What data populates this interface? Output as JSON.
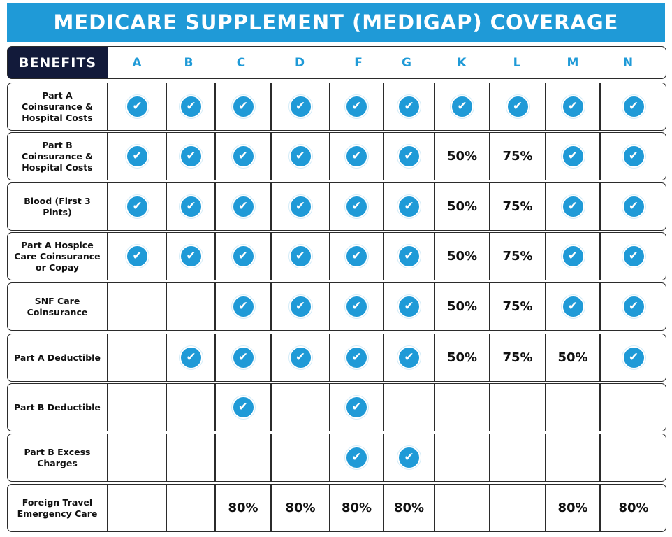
{
  "title": "MEDICARE SUPPLEMENT (MEDIGAP) COVERAGE",
  "benefits_header": "BENEFITS",
  "plans": [
    "A",
    "B",
    "C",
    "D",
    "F",
    "G",
    "K",
    "L",
    "M",
    "N"
  ],
  "icons": {
    "included": "check-circle-icon"
  },
  "colors": {
    "accent": "#1f9ad7",
    "header_dark": "#121a3a",
    "border": "#2b2b2b"
  },
  "rows": [
    {
      "benefit": "Part A Coinsurance & Hospital Costs",
      "cells": [
        "check",
        "check",
        "check",
        "check",
        "check",
        "check",
        "check",
        "check",
        "check",
        "check"
      ]
    },
    {
      "benefit": "Part B Coinsurance & Hospital Costs",
      "cells": [
        "check",
        "check",
        "check",
        "check",
        "check",
        "check",
        "50%",
        "75%",
        "check",
        "check"
      ]
    },
    {
      "benefit": "Blood (First 3 Pints)",
      "cells": [
        "check",
        "check",
        "check",
        "check",
        "check",
        "check",
        "50%",
        "75%",
        "check",
        "check"
      ]
    },
    {
      "benefit": "Part A Hospice Care Coinsurance or Copay",
      "cells": [
        "check",
        "check",
        "check",
        "check",
        "check",
        "check",
        "50%",
        "75%",
        "check",
        "check"
      ]
    },
    {
      "benefit": "SNF Care Coinsurance",
      "cells": [
        "",
        "",
        "check",
        "check",
        "check",
        "check",
        "50%",
        "75%",
        "check",
        "check"
      ]
    },
    {
      "benefit": "Part A Deductible",
      "cells": [
        "",
        "check",
        "check",
        "check",
        "check",
        "check",
        "50%",
        "75%",
        "50%",
        "check"
      ]
    },
    {
      "benefit": "Part B Deductible",
      "cells": [
        "",
        "",
        "check",
        "",
        "check",
        "",
        "",
        "",
        "",
        ""
      ]
    },
    {
      "benefit": "Part B Excess Charges",
      "cells": [
        "",
        "",
        "",
        "",
        "check",
        "check",
        "",
        "",
        "",
        ""
      ]
    },
    {
      "benefit": "Foreign Travel Emergency Care",
      "cells": [
        "",
        "",
        "80%",
        "80%",
        "80%",
        "80%",
        "",
        "",
        "80%",
        "80%"
      ]
    }
  ]
}
